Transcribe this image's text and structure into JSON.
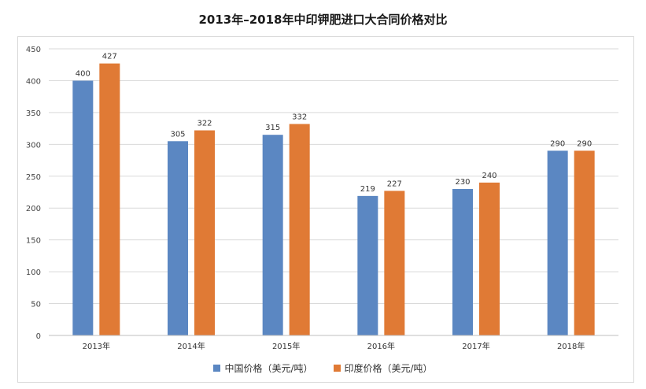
{
  "chart_data": {
    "type": "bar",
    "title": "2013年–2018年中印钾肥进口大合同价格对比",
    "categories": [
      "2013年",
      "2014年",
      "2015年",
      "2016年",
      "2017年",
      "2018年"
    ],
    "series": [
      {
        "name": "中国价格（美元/吨）",
        "color": "#5b87c2",
        "values": [
          400,
          305,
          315,
          219,
          230,
          290
        ],
        "labels": [
          "400",
          "305",
          "315",
          "219",
          "230",
          "290"
        ]
      },
      {
        "name": "印度价格（美元/吨）",
        "color": "#e07a35",
        "values": [
          427,
          322,
          332,
          227,
          240,
          290
        ],
        "labels": [
          "427",
          "322",
          "332",
          "227",
          "240",
          "290"
        ]
      }
    ],
    "ylim": [
      0,
      450
    ],
    "yticks": [
      0,
      50,
      100,
      150,
      200,
      250,
      300,
      350,
      400,
      450
    ],
    "grid": true,
    "legend_position": "bottom"
  }
}
